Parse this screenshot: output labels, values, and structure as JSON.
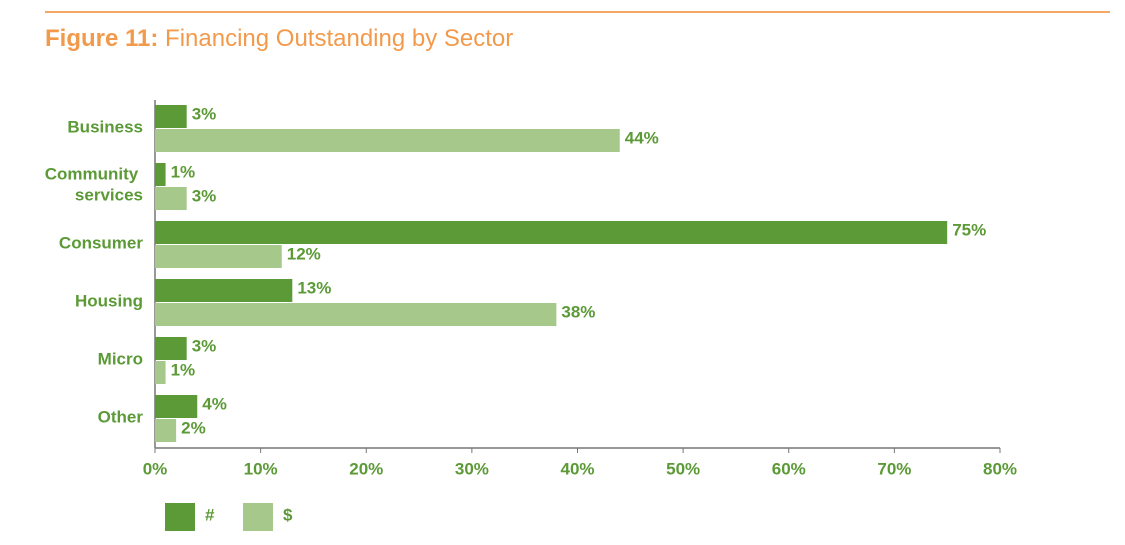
{
  "chart_data": {
    "type": "bar",
    "orientation": "horizontal",
    "figure_label": "Figure 11:",
    "title": "Financing Outstanding by Sector",
    "categories": [
      "Business",
      "Community services",
      "Consumer",
      "Housing",
      "Micro",
      "Other"
    ],
    "series": [
      {
        "name": "#",
        "color": "#5b9a36",
        "values": [
          3,
          1,
          75,
          13,
          3,
          4
        ],
        "value_labels": [
          "3%",
          "1%",
          "75%",
          "13%",
          "3%",
          "4%"
        ]
      },
      {
        "name": "$",
        "color": "#a7c88b",
        "values": [
          44,
          3,
          12,
          38,
          1,
          2
        ],
        "value_labels": [
          "44%",
          "3%",
          "12%",
          "38%",
          "1%",
          "2%"
        ]
      }
    ],
    "xlim": [
      0,
      80
    ],
    "xticks": [
      {
        "value": 0,
        "label": "0%"
      },
      {
        "value": 10,
        "label": "10%"
      },
      {
        "value": 20,
        "label": "20%"
      },
      {
        "value": 30,
        "label": "30%"
      },
      {
        "value": 40,
        "label": "40%"
      },
      {
        "value": 50,
        "label": "50%"
      },
      {
        "value": 60,
        "label": "60%"
      },
      {
        "value": 70,
        "label": "70%"
      },
      {
        "value": 80,
        "label": "80%"
      }
    ],
    "grid": false,
    "legend": "bottom-left"
  }
}
